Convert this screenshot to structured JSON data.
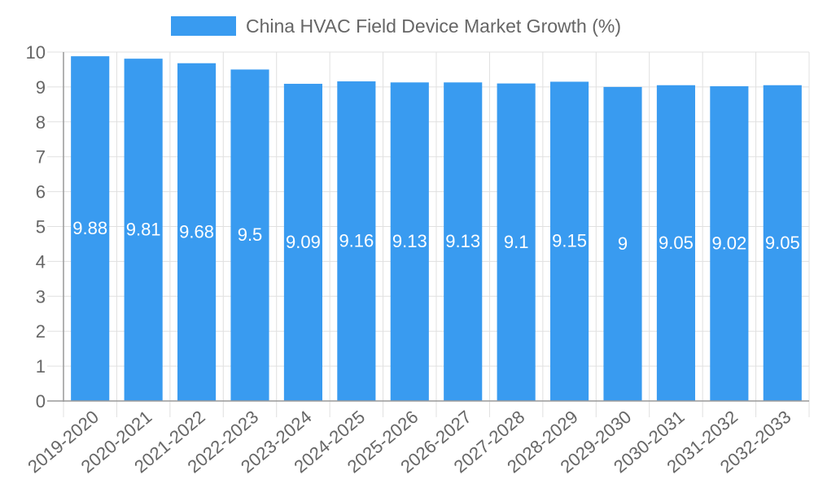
{
  "chart_data": {
    "type": "bar",
    "title": "",
    "legend": [
      "China HVAC Field Device Market Growth (%)"
    ],
    "legend_position": "top",
    "xlabel": "",
    "ylabel": "",
    "ylim": [
      0,
      10
    ],
    "yticks": [
      0,
      1,
      2,
      3,
      4,
      5,
      6,
      7,
      8,
      9,
      10
    ],
    "grid": true,
    "bar_color": "#399bf0",
    "categories": [
      "2019-2020",
      "2020-2021",
      "2021-2022",
      "2022-2023",
      "2023-2024",
      "2024-2025",
      "2025-2026",
      "2026-2027",
      "2027-2028",
      "2028-2029",
      "2029-2030",
      "2030-2031",
      "2031-2032",
      "2032-2033"
    ],
    "series": [
      {
        "name": "China HVAC Field Device Market Growth (%)",
        "values": [
          9.88,
          9.81,
          9.68,
          9.5,
          9.09,
          9.16,
          9.13,
          9.13,
          9.1,
          9.15,
          9,
          9.05,
          9.02,
          9.05
        ]
      }
    ],
    "data_labels": [
      "9.88",
      "9.81",
      "9.68",
      "9.5",
      "9.09",
      "9.16",
      "9.13",
      "9.13",
      "9.1",
      "9.15",
      "9",
      "9.05",
      "9.02",
      "9.05"
    ]
  },
  "legend": {
    "label": "China HVAC Field Device Market Growth (%)",
    "color": "#399bf0"
  }
}
